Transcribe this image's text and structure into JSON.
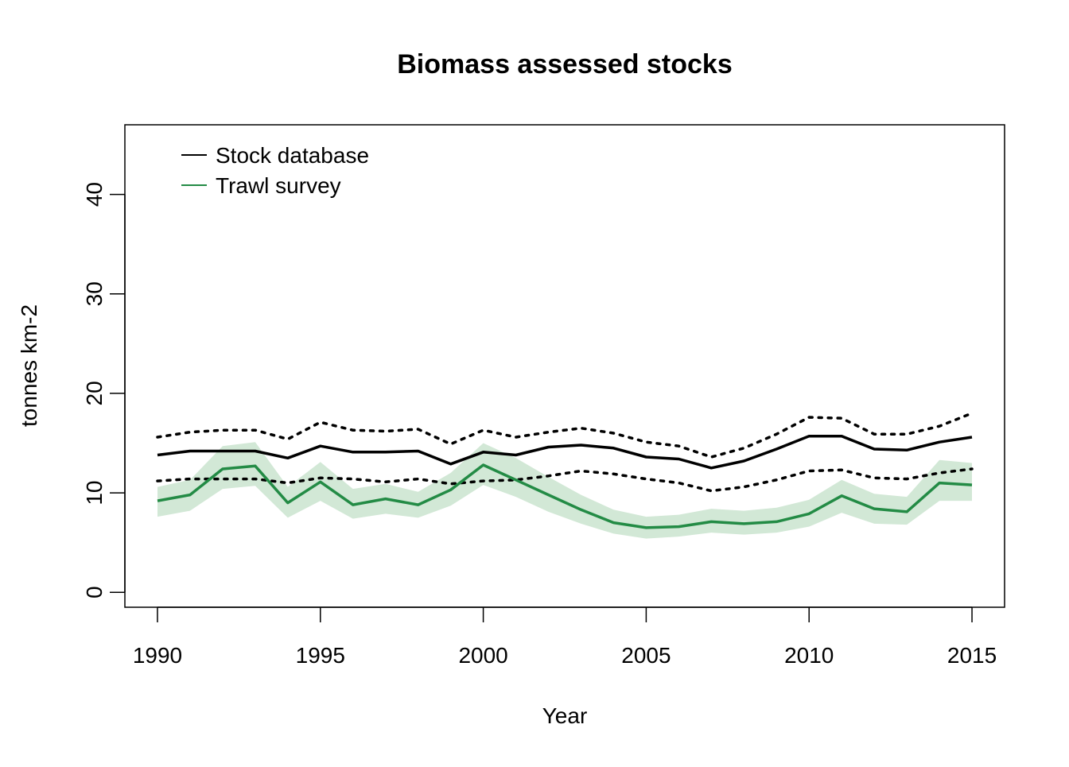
{
  "chart_data": {
    "type": "line",
    "title": "Biomass assessed stocks",
    "xlabel": "Year",
    "ylabel": "tonnes km-2",
    "xlim": [
      1989,
      2016
    ],
    "ylim": [
      -1.5,
      47
    ],
    "x_ticks": [
      1990,
      1995,
      2000,
      2005,
      2010,
      2015
    ],
    "y_ticks": [
      0,
      10,
      20,
      30,
      40
    ],
    "legend_position": "top-left",
    "grid": false,
    "x": [
      1990,
      1991,
      1992,
      1993,
      1994,
      1995,
      1996,
      1997,
      1998,
      1999,
      2000,
      2001,
      2002,
      2003,
      2004,
      2005,
      2006,
      2007,
      2008,
      2009,
      2010,
      2011,
      2012,
      2013,
      2014,
      2015
    ],
    "series": [
      {
        "name": "Stock database",
        "color": "#000000",
        "values": [
          13.8,
          14.2,
          14.2,
          14.2,
          13.5,
          14.7,
          14.1,
          14.1,
          14.2,
          12.9,
          14.1,
          13.8,
          14.6,
          14.8,
          14.5,
          13.6,
          13.4,
          12.5,
          13.2,
          14.4,
          15.7,
          15.7,
          14.4,
          14.3,
          15.1,
          15.6
        ],
        "upper": [
          15.6,
          16.1,
          16.3,
          16.3,
          15.4,
          17.1,
          16.3,
          16.2,
          16.4,
          14.9,
          16.3,
          15.6,
          16.1,
          16.5,
          16.0,
          15.1,
          14.7,
          13.6,
          14.5,
          15.9,
          17.6,
          17.5,
          15.9,
          15.9,
          16.7,
          18.0
        ],
        "lower": [
          11.2,
          11.4,
          11.4,
          11.4,
          11.0,
          11.5,
          11.4,
          11.1,
          11.4,
          10.9,
          11.2,
          11.3,
          11.7,
          12.2,
          11.9,
          11.4,
          11.0,
          10.2,
          10.6,
          11.3,
          12.2,
          12.3,
          11.5,
          11.4,
          12.0,
          12.4
        ]
      },
      {
        "name": "Trawl survey",
        "color": "#238b45",
        "band_color": "#d2e8d6",
        "values": [
          9.2,
          9.8,
          12.4,
          12.7,
          9.0,
          11.1,
          8.8,
          9.4,
          8.8,
          10.3,
          12.8,
          11.3,
          9.8,
          8.3,
          7.0,
          6.5,
          6.6,
          7.1,
          6.9,
          7.1,
          7.9,
          9.7,
          8.4,
          8.1,
          11.0,
          10.8
        ],
        "upper": [
          10.6,
          11.3,
          14.7,
          15.1,
          10.6,
          13.1,
          10.4,
          10.9,
          10.1,
          12.0,
          15.0,
          13.5,
          11.6,
          9.8,
          8.3,
          7.6,
          7.8,
          8.4,
          8.2,
          8.5,
          9.3,
          11.3,
          9.9,
          9.6,
          13.3,
          13.0
        ],
        "lower": [
          7.6,
          8.2,
          10.4,
          10.7,
          7.5,
          9.2,
          7.4,
          7.9,
          7.5,
          8.7,
          10.8,
          9.6,
          8.1,
          6.9,
          5.9,
          5.4,
          5.6,
          6.0,
          5.8,
          6.0,
          6.6,
          8.0,
          6.9,
          6.8,
          9.2,
          9.2
        ]
      }
    ]
  }
}
